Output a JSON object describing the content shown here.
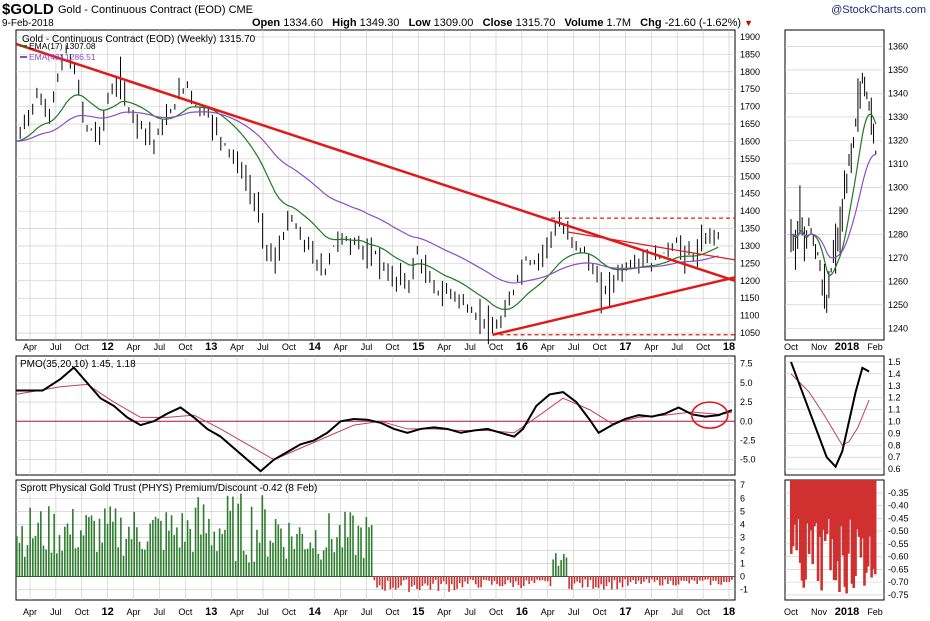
{
  "header": {
    "symbol": "$GOLD",
    "name": "Gold - Continuous Contract (EOD)",
    "exchange": "CME",
    "brand": "@StockCharts.com",
    "date": "9-Feb-2018",
    "open_label": "Open",
    "open": "1334.60",
    "high_label": "High",
    "high": "1349.30",
    "low_label": "Low",
    "low": "1309.00",
    "close_label": "Close",
    "close": "1315.70",
    "volume_label": "Volume",
    "volume": "1.7M",
    "chg_label": "Chg",
    "chg": "-21.60 (-1.62%)",
    "down_arrow": "▼"
  },
  "colors": {
    "price": "#000000",
    "ema17": "#1f7a1f",
    "ema43": "#8a4fc8",
    "trendline": "#e01a1a",
    "pmo": "#000000",
    "pmo_signal": "#c0405a",
    "premium": "#2e7d2e",
    "discount": "#d03030",
    "grid": "#c8c8c8",
    "circle": "#e01a1a"
  },
  "chart_data": [
    {
      "type": "line",
      "panel": "price-weekly",
      "title": "Gold - Continuous Contract (EOD) (Weekly) 1315.70",
      "series": [
        {
          "name": "EMA(17)",
          "last_value": "1307.08"
        },
        {
          "name": "EMA(43)",
          "last_value": "1286.51"
        }
      ],
      "x_tick_labels": [
        "Apr",
        "Jul",
        "Oct",
        "12",
        "Apr",
        "Jul",
        "Oct",
        "13",
        "Apr",
        "Jul",
        "Oct",
        "14",
        "Apr",
        "Jul",
        "Oct",
        "15",
        "Apr",
        "Jul",
        "Oct",
        "16",
        "Apr",
        "Jul",
        "Oct",
        "17",
        "Apr",
        "Jul",
        "Oct",
        "18"
      ],
      "y_tick_labels": [
        "1900",
        "1850",
        "1800",
        "1750",
        "1700",
        "1650",
        "1600",
        "1550",
        "1500",
        "1450",
        "1400",
        "1350",
        "1300",
        "1250",
        "1200",
        "1150",
        "1100",
        "1050"
      ],
      "ylim": [
        1030,
        1920
      ],
      "price_path": [
        [
          0,
          1600
        ],
        [
          5,
          1730
        ],
        [
          8,
          1680
        ],
        [
          10,
          1780
        ],
        [
          12,
          1860
        ],
        [
          14,
          1800
        ],
        [
          17,
          1640
        ],
        [
          20,
          1620
        ],
        [
          22,
          1720
        ],
        [
          25,
          1780
        ],
        [
          27,
          1690
        ],
        [
          30,
          1650
        ],
        [
          33,
          1600
        ],
        [
          36,
          1660
        ],
        [
          39,
          1730
        ],
        [
          41,
          1770
        ],
        [
          43,
          1700
        ],
        [
          46,
          1680
        ],
        [
          49,
          1610
        ],
        [
          52,
          1560
        ],
        [
          55,
          1490
        ],
        [
          58,
          1400
        ],
        [
          60,
          1300
        ],
        [
          62,
          1250
        ],
        [
          64,
          1330
        ],
        [
          66,
          1380
        ],
        [
          68,
          1320
        ],
        [
          70,
          1300
        ],
        [
          72,
          1250
        ],
        [
          74,
          1230
        ],
        [
          76,
          1300
        ],
        [
          78,
          1330
        ],
        [
          80,
          1300
        ],
        [
          82,
          1320
        ],
        [
          84,
          1260
        ],
        [
          86,
          1280
        ],
        [
          88,
          1240
        ],
        [
          90,
          1200
        ],
        [
          92,
          1210
        ],
        [
          94,
          1190
        ],
        [
          96,
          1280
        ],
        [
          98,
          1220
        ],
        [
          100,
          1180
        ],
        [
          102,
          1160
        ],
        [
          104,
          1170
        ],
        [
          106,
          1150
        ],
        [
          108,
          1120
        ],
        [
          110,
          1100
        ],
        [
          112,
          1090
        ],
        [
          114,
          1050
        ],
        [
          116,
          1080
        ],
        [
          118,
          1130
        ],
        [
          120,
          1210
        ],
        [
          122,
          1260
        ],
        [
          124,
          1250
        ],
        [
          126,
          1280
        ],
        [
          128,
          1330
        ],
        [
          130,
          1360
        ],
        [
          132,
          1330
        ],
        [
          134,
          1310
        ],
        [
          136,
          1280
        ],
        [
          138,
          1230
        ],
        [
          140,
          1170
        ],
        [
          142,
          1180
        ],
        [
          144,
          1220
        ],
        [
          146,
          1240
        ],
        [
          148,
          1250
        ],
        [
          150,
          1260
        ],
        [
          152,
          1250
        ],
        [
          154,
          1270
        ],
        [
          156,
          1290
        ],
        [
          158,
          1310
        ],
        [
          160,
          1280
        ],
        [
          162,
          1270
        ],
        [
          164,
          1300
        ],
        [
          166,
          1330
        ],
        [
          168,
          1340
        ]
      ],
      "trendlines": [
        {
          "from": [
            0,
            1880
          ],
          "to": [
            172,
            1200
          ]
        },
        {
          "from": [
            114,
            1045
          ],
          "to": [
            172,
            1210
          ]
        },
        {
          "from": [
            128,
            1380
          ],
          "to": [
            172,
            1380
          ],
          "dashed": true
        },
        {
          "from": [
            114,
            1045
          ],
          "to": [
            172,
            1045
          ],
          "dashed": true
        },
        {
          "from": [
            132,
            1340
          ],
          "to": [
            172,
            1260
          ]
        }
      ]
    },
    {
      "type": "line",
      "panel": "price-daily",
      "x_tick_labels": [
        "Oct",
        "Nov",
        "2018",
        "Feb"
      ],
      "y_tick_labels": [
        "1360",
        "1350",
        "1340",
        "1330",
        "1320",
        "1310",
        "1300",
        "1290",
        "1280",
        "1270",
        "1260",
        "1250",
        "1240"
      ],
      "ylim": [
        1235,
        1367
      ]
    },
    {
      "type": "line",
      "panel": "pmo-weekly",
      "title": "PMO(35,20,10) 1.45, 1.18",
      "series": [
        {
          "name": "PMO",
          "last_value": "1.45"
        },
        {
          "name": "Signal",
          "last_value": "1.18"
        }
      ],
      "y_tick_labels": [
        "7.5",
        "5.0",
        "2.5",
        "0.0",
        "-2.5",
        "-5.0"
      ],
      "ylim": [
        -7,
        8.5
      ],
      "pmo_path": [
        [
          0,
          4
        ],
        [
          6,
          4
        ],
        [
          10,
          5.5
        ],
        [
          13,
          7
        ],
        [
          16,
          5
        ],
        [
          19,
          3
        ],
        [
          22,
          2
        ],
        [
          25,
          0.5
        ],
        [
          28,
          -0.5
        ],
        [
          31,
          0
        ],
        [
          34,
          1
        ],
        [
          37,
          1.8
        ],
        [
          40,
          0.5
        ],
        [
          43,
          -1
        ],
        [
          46,
          -2
        ],
        [
          49,
          -3.5
        ],
        [
          52,
          -5
        ],
        [
          55,
          -6.5
        ],
        [
          58,
          -5
        ],
        [
          61,
          -4
        ],
        [
          64,
          -3
        ],
        [
          67,
          -2.5
        ],
        [
          70,
          -1.5
        ],
        [
          73,
          0
        ],
        [
          76,
          0.3
        ],
        [
          79,
          0.2
        ],
        [
          82,
          -0.2
        ],
        [
          85,
          -1
        ],
        [
          88,
          -1.5
        ],
        [
          91,
          -1
        ],
        [
          94,
          -0.8
        ],
        [
          97,
          -1
        ],
        [
          100,
          -1.5
        ],
        [
          103,
          -1.2
        ],
        [
          106,
          -1
        ],
        [
          109,
          -1.5
        ],
        [
          112,
          -2
        ],
        [
          114,
          -1
        ],
        [
          117,
          2
        ],
        [
          120,
          3.5
        ],
        [
          123,
          3.8
        ],
        [
          126,
          2.5
        ],
        [
          129,
          0.2
        ],
        [
          131,
          -1.5
        ],
        [
          134,
          -0.5
        ],
        [
          137,
          0.3
        ],
        [
          140,
          0.8
        ],
        [
          143,
          0.6
        ],
        [
          146,
          1
        ],
        [
          149,
          1.8
        ],
        [
          152,
          0.9
        ],
        [
          155,
          0.6
        ],
        [
          158,
          0.8
        ],
        [
          161,
          1.45
        ]
      ],
      "signal_path": [
        [
          0,
          3.5
        ],
        [
          10,
          4.5
        ],
        [
          16,
          4.8
        ],
        [
          22,
          2.5
        ],
        [
          28,
          0.5
        ],
        [
          34,
          0.5
        ],
        [
          40,
          0.8
        ],
        [
          46,
          -1
        ],
        [
          52,
          -3
        ],
        [
          58,
          -5
        ],
        [
          64,
          -3.5
        ],
        [
          70,
          -2
        ],
        [
          76,
          -0.5
        ],
        [
          82,
          0
        ],
        [
          88,
          -1
        ],
        [
          94,
          -1
        ],
        [
          100,
          -1.2
        ],
        [
          106,
          -1.2
        ],
        [
          112,
          -1.5
        ],
        [
          117,
          0.5
        ],
        [
          123,
          3
        ],
        [
          129,
          1.5
        ],
        [
          134,
          -0.3
        ],
        [
          140,
          0.5
        ],
        [
          146,
          0.8
        ],
        [
          152,
          1.2
        ],
        [
          158,
          0.9
        ],
        [
          161,
          1.18
        ]
      ]
    },
    {
      "type": "line",
      "panel": "pmo-daily",
      "y_tick_labels": [
        "1.5",
        "1.4",
        "1.3",
        "1.2",
        "1.1",
        "1.0",
        "0.9",
        "0.8",
        "0.7",
        "0.6"
      ],
      "ylim": [
        0.55,
        1.55
      ]
    },
    {
      "type": "bar",
      "panel": "phys-weekly",
      "title": "Sprott Physical Gold Trust (PHYS) Premium/Discount -0.42 (8 Feb)",
      "last_value": "-0.42",
      "y_tick_labels": [
        "7",
        "6",
        "5",
        "4",
        "3",
        "2",
        "1",
        "0",
        "-1"
      ],
      "ylim": [
        -1.8,
        7.4
      ],
      "segments": [
        {
          "x0": 0,
          "x1": 40,
          "low": 1.5,
          "high": 5.5
        },
        {
          "x0": 40,
          "x1": 60,
          "low": 1.0,
          "high": 6.5
        },
        {
          "x0": 60,
          "x1": 80,
          "low": 1.2,
          "high": 5.0
        },
        {
          "x0": 80,
          "x1": 100,
          "low": -1.2,
          "high": -0.2
        },
        {
          "x0": 100,
          "x1": 120,
          "low": -0.9,
          "high": -0.2
        },
        {
          "x0": 120,
          "x1": 124,
          "low": 0.8,
          "high": 1.8
        },
        {
          "x0": 124,
          "x1": 140,
          "low": -1.0,
          "high": -0.2
        },
        {
          "x0": 140,
          "x1": 161,
          "low": -0.7,
          "high": -0.2
        }
      ]
    },
    {
      "type": "bar",
      "panel": "phys-daily",
      "x_tick_labels": [
        "Oct",
        "Nov",
        "2018",
        "Feb"
      ],
      "y_tick_labels": [
        "-0.35",
        "-0.40",
        "-0.45",
        "-0.50",
        "-0.55",
        "-0.60",
        "-0.65",
        "-0.70",
        "-0.75"
      ],
      "ylim": [
        -0.77,
        -0.3
      ]
    }
  ]
}
